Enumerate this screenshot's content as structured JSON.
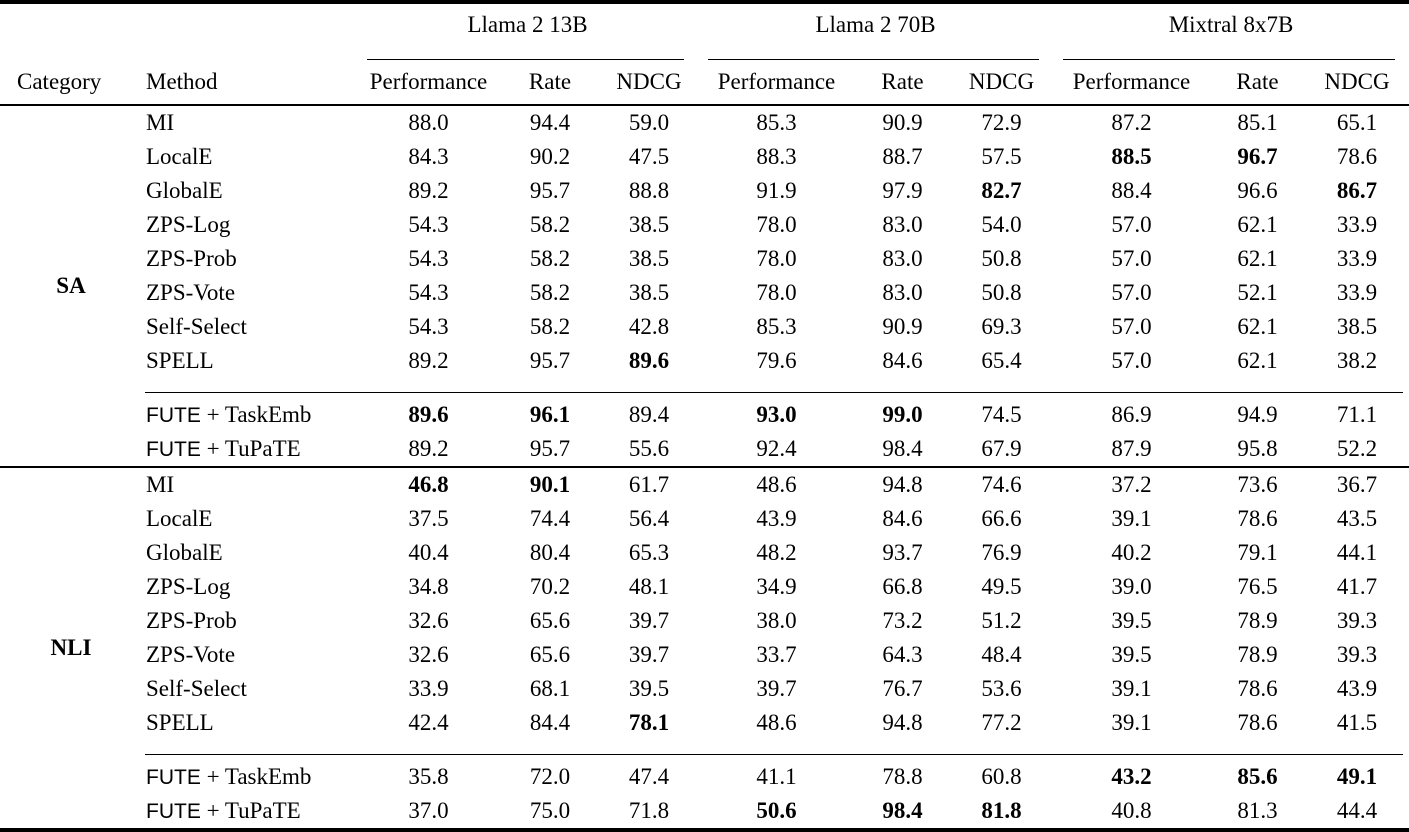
{
  "table": {
    "corner_headers": [
      "Category",
      "Method"
    ],
    "groups": [
      {
        "label": "Llama 2 13B",
        "subcols": [
          "Performance",
          "Rate",
          "NDCG"
        ]
      },
      {
        "label": "Llama 2 70B",
        "subcols": [
          "Performance",
          "Rate",
          "NDCG"
        ]
      },
      {
        "label": "Mixtral 8x7B",
        "subcols": [
          "Performance",
          "Rate",
          "NDCG"
        ]
      }
    ],
    "sections": [
      {
        "category": "SA",
        "baseline_rows": [
          {
            "method": "MI",
            "values": [
              "88.0",
              "94.4",
              "59.0",
              "85.3",
              "90.9",
              "72.9",
              "87.2",
              "85.1",
              "65.1"
            ],
            "bold": []
          },
          {
            "method": "LocalE",
            "values": [
              "84.3",
              "90.2",
              "47.5",
              "88.3",
              "88.7",
              "57.5",
              "88.5",
              "96.7",
              "78.6"
            ],
            "bold": [
              6,
              7
            ]
          },
          {
            "method": "GlobalE",
            "values": [
              "89.2",
              "95.7",
              "88.8",
              "91.9",
              "97.9",
              "82.7",
              "88.4",
              "96.6",
              "86.7"
            ],
            "bold": [
              5,
              8
            ]
          },
          {
            "method": "ZPS-Log",
            "values": [
              "54.3",
              "58.2",
              "38.5",
              "78.0",
              "83.0",
              "54.0",
              "57.0",
              "62.1",
              "33.9"
            ],
            "bold": []
          },
          {
            "method": "ZPS-Prob",
            "values": [
              "54.3",
              "58.2",
              "38.5",
              "78.0",
              "83.0",
              "50.8",
              "57.0",
              "62.1",
              "33.9"
            ],
            "bold": []
          },
          {
            "method": "ZPS-Vote",
            "values": [
              "54.3",
              "58.2",
              "38.5",
              "78.0",
              "83.0",
              "50.8",
              "57.0",
              "52.1",
              "33.9"
            ],
            "bold": []
          },
          {
            "method": "Self-Select",
            "values": [
              "54.3",
              "58.2",
              "42.8",
              "85.3",
              "90.9",
              "69.3",
              "57.0",
              "62.1",
              "38.5"
            ],
            "bold": []
          },
          {
            "method": "SPELL",
            "values": [
              "89.2",
              "95.7",
              "89.6",
              "79.6",
              "84.6",
              "65.4",
              "57.0",
              "62.1",
              "38.2"
            ],
            "bold": [
              2
            ]
          }
        ],
        "fute_rows": [
          {
            "method_prefix": "FUTE",
            "method_rest": " + TaskEmb",
            "values": [
              "89.6",
              "96.1",
              "89.4",
              "93.0",
              "99.0",
              "74.5",
              "86.9",
              "94.9",
              "71.1"
            ],
            "bold": [
              0,
              1,
              3,
              4
            ]
          },
          {
            "method_prefix": "FUTE",
            "method_rest": " + TuPaTE",
            "values": [
              "89.2",
              "95.7",
              "55.6",
              "92.4",
              "98.4",
              "67.9",
              "87.9",
              "95.8",
              "52.2"
            ],
            "bold": []
          }
        ]
      },
      {
        "category": "NLI",
        "baseline_rows": [
          {
            "method": "MI",
            "values": [
              "46.8",
              "90.1",
              "61.7",
              "48.6",
              "94.8",
              "74.6",
              "37.2",
              "73.6",
              "36.7"
            ],
            "bold": [
              0,
              1
            ]
          },
          {
            "method": "LocalE",
            "values": [
              "37.5",
              "74.4",
              "56.4",
              "43.9",
              "84.6",
              "66.6",
              "39.1",
              "78.6",
              "43.5"
            ],
            "bold": []
          },
          {
            "method": "GlobalE",
            "values": [
              "40.4",
              "80.4",
              "65.3",
              "48.2",
              "93.7",
              "76.9",
              "40.2",
              "79.1",
              "44.1"
            ],
            "bold": []
          },
          {
            "method": "ZPS-Log",
            "values": [
              "34.8",
              "70.2",
              "48.1",
              "34.9",
              "66.8",
              "49.5",
              "39.0",
              "76.5",
              "41.7"
            ],
            "bold": []
          },
          {
            "method": "ZPS-Prob",
            "values": [
              "32.6",
              "65.6",
              "39.7",
              "38.0",
              "73.2",
              "51.2",
              "39.5",
              "78.9",
              "39.3"
            ],
            "bold": []
          },
          {
            "method": "ZPS-Vote",
            "values": [
              "32.6",
              "65.6",
              "39.7",
              "33.7",
              "64.3",
              "48.4",
              "39.5",
              "78.9",
              "39.3"
            ],
            "bold": []
          },
          {
            "method": "Self-Select",
            "values": [
              "33.9",
              "68.1",
              "39.5",
              "39.7",
              "76.7",
              "53.6",
              "39.1",
              "78.6",
              "43.9"
            ],
            "bold": []
          },
          {
            "method": "SPELL",
            "values": [
              "42.4",
              "84.4",
              "78.1",
              "48.6",
              "94.8",
              "77.2",
              "39.1",
              "78.6",
              "41.5"
            ],
            "bold": [
              2
            ]
          }
        ],
        "fute_rows": [
          {
            "method_prefix": "FUTE",
            "method_rest": " + TaskEmb",
            "values": [
              "35.8",
              "72.0",
              "47.4",
              "41.1",
              "78.8",
              "60.8",
              "43.2",
              "85.6",
              "49.1"
            ],
            "bold": [
              6,
              7,
              8
            ]
          },
          {
            "method_prefix": "FUTE",
            "method_rest": " + TuPaTE",
            "values": [
              "37.0",
              "75.0",
              "71.8",
              "50.6",
              "98.4",
              "81.8",
              "40.8",
              "81.3",
              "44.4"
            ],
            "bold": [
              3,
              4,
              5
            ]
          }
        ]
      }
    ]
  }
}
